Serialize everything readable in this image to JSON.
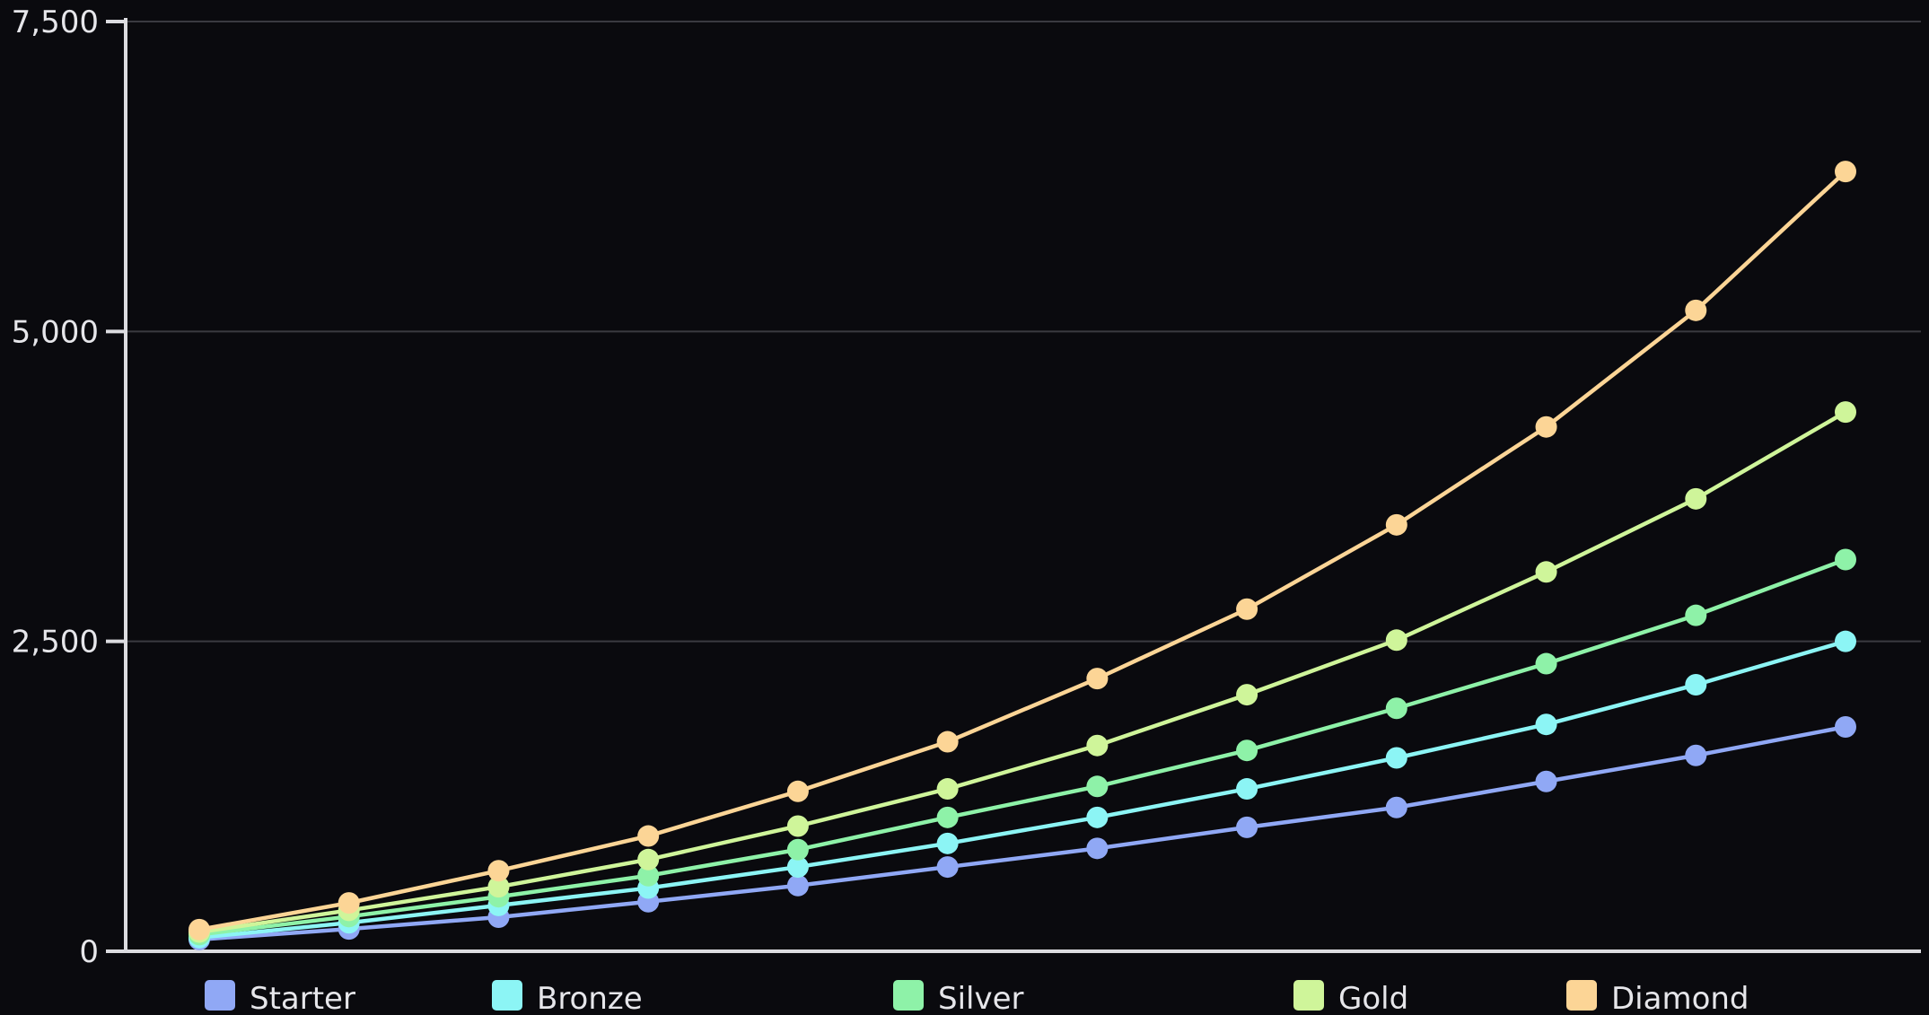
{
  "chart_data": {
    "type": "line",
    "title": "",
    "xlabel": "",
    "ylabel": "",
    "ylim": [
      0,
      7500
    ],
    "x": [
      1,
      2,
      3,
      4,
      5,
      6,
      7,
      8,
      9,
      10,
      11,
      12
    ],
    "y_ticks": [
      {
        "value": 0,
        "label": "0"
      },
      {
        "value": 2500,
        "label": "2,500"
      },
      {
        "value": 5000,
        "label": "5,000"
      },
      {
        "value": 7500,
        "label": "7,500"
      }
    ],
    "grid": true,
    "legend_position": "bottom",
    "series": [
      {
        "name": "Starter",
        "color": "#90a8f5",
        "values": [
          95,
          180,
          275,
          400,
          530,
          680,
          830,
          1000,
          1160,
          1370,
          1580,
          1810
        ]
      },
      {
        "name": "Bronze",
        "color": "#8cf5f5",
        "values": [
          110,
          230,
          370,
          510,
          680,
          870,
          1080,
          1310,
          1560,
          1830,
          2150,
          2500
        ]
      },
      {
        "name": "Silver",
        "color": "#8ef2a8",
        "values": [
          135,
          280,
          440,
          610,
          820,
          1080,
          1330,
          1620,
          1960,
          2320,
          2710,
          3160
        ]
      },
      {
        "name": "Gold",
        "color": "#cff59a",
        "values": [
          155,
          330,
          520,
          740,
          1010,
          1310,
          1660,
          2070,
          2510,
          3060,
          3650,
          4350
        ]
      },
      {
        "name": "Diamond",
        "color": "#fcd596",
        "values": [
          175,
          390,
          650,
          930,
          1290,
          1690,
          2200,
          2760,
          3440,
          4230,
          5170,
          6290
        ]
      }
    ]
  }
}
